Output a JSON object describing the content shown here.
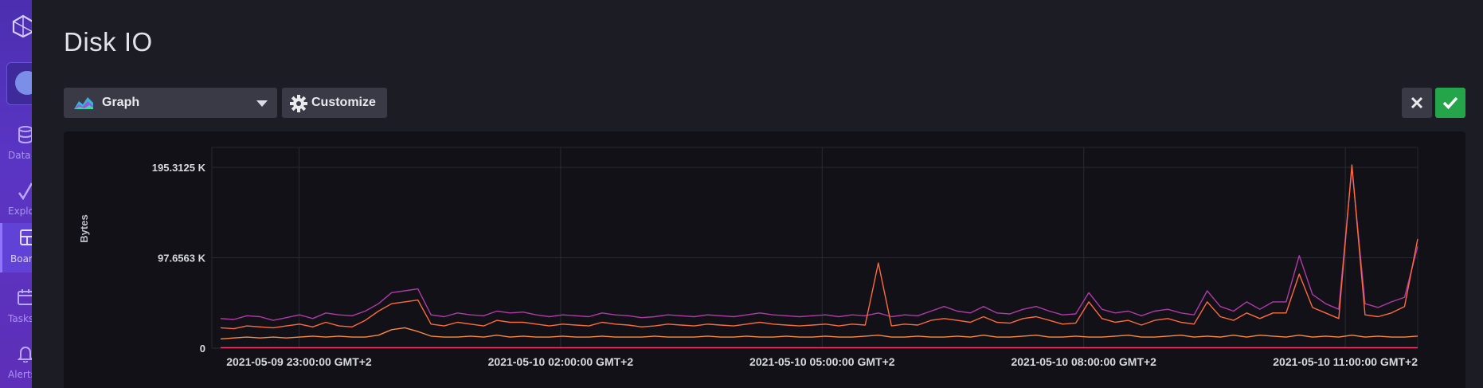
{
  "sidebar": {
    "items": [
      {
        "label": "Data",
        "icon": "database-icon"
      },
      {
        "label": "Explore",
        "icon": "explore-icon"
      },
      {
        "label": "Boards",
        "icon": "boards-icon"
      },
      {
        "label": "Tasks",
        "icon": "calendar-icon"
      },
      {
        "label": "Alerts",
        "icon": "bell-icon"
      }
    ]
  },
  "page": {
    "title": "Disk IO"
  },
  "toolbar": {
    "view_type": "Graph",
    "customize_label": "Customize",
    "accent_ok": "#25a54a"
  },
  "chart_data": {
    "type": "line",
    "title": "",
    "xlabel": "",
    "ylabel": "Bytes",
    "y_ticks": [
      "195.3125 K",
      "97.6563 K",
      "0"
    ],
    "y_tick_values": [
      195312.5,
      97656.3,
      0
    ],
    "ylim": [
      0,
      210000
    ],
    "x_ticks": [
      "2021-05-09 23:00:00 GMT+2",
      "2021-05-10 02:00:00 GMT+2",
      "2021-05-10 05:00:00 GMT+2",
      "2021-05-10 08:00:00 GMT+2",
      "2021-05-10 11:00:00 GMT+2"
    ],
    "x_range": [
      "2021-05-09 22:00:00 GMT+2",
      "2021-05-10 11:50:00 GMT+2"
    ],
    "x_tick_hours": [
      1,
      4,
      7,
      10,
      13
    ],
    "grid": true,
    "series": [
      {
        "color": "#b03aa8",
        "x_hours_start": 0.1,
        "x_hours_step": 0.5,
        "values": [
          32000,
          31000,
          35000,
          34000,
          30000,
          33000,
          36000,
          32000,
          38000,
          36000,
          35000,
          40000,
          48000,
          60000,
          62000,
          64000,
          36000,
          34000,
          38000,
          36000,
          35000,
          40000,
          38000,
          39000,
          36000,
          34000,
          36000,
          35000,
          34000,
          38000,
          36000,
          35000,
          33000,
          34000,
          36000,
          35000,
          34000,
          36000,
          35000,
          34000,
          36000,
          38000,
          36000,
          35000,
          34000,
          35000,
          36000,
          34000,
          36000,
          35000,
          38000,
          34000,
          36000,
          35000,
          40000,
          45000,
          40000,
          38000,
          45000,
          38000,
          37000,
          42000,
          45000,
          40000,
          36000,
          37000,
          60000,
          42000,
          38000,
          40000,
          35000,
          40000,
          42000,
          38000,
          36000,
          62000,
          45000,
          40000,
          50000,
          42000,
          50000,
          50000,
          100000,
          58000,
          48000,
          42000,
          195000,
          48000,
          44000,
          50000,
          55000,
          110000
        ]
      },
      {
        "color": "#ff6a3c",
        "x_hours_start": 0.1,
        "x_hours_step": 0.5,
        "values": [
          22000,
          21000,
          24000,
          23000,
          22000,
          24000,
          26000,
          23000,
          28000,
          24000,
          23000,
          30000,
          40000,
          48000,
          50000,
          52000,
          26000,
          24000,
          28000,
          26000,
          24000,
          30000,
          28000,
          28000,
          26000,
          24000,
          26000,
          25000,
          24000,
          28000,
          26000,
          25000,
          23000,
          24000,
          26000,
          25000,
          24000,
          26000,
          25000,
          24000,
          26000,
          28000,
          26000,
          25000,
          24000,
          25000,
          26000,
          24000,
          26000,
          25000,
          92000,
          24000,
          26000,
          25000,
          30000,
          32000,
          30000,
          28000,
          34000,
          28000,
          27000,
          32000,
          34000,
          30000,
          26000,
          27000,
          50000,
          32000,
          28000,
          30000,
          25000,
          30000,
          32000,
          28000,
          26000,
          50000,
          34000,
          30000,
          38000,
          32000,
          38000,
          38000,
          80000,
          44000,
          38000,
          32000,
          198000,
          36000,
          34000,
          38000,
          45000,
          118000
        ]
      },
      {
        "color": "#ff8a3c",
        "x_hours_start": 0.1,
        "x_hours_step": 0.5,
        "values": [
          10000,
          11000,
          12000,
          11000,
          12000,
          11000,
          12000,
          13000,
          12000,
          13000,
          12000,
          12000,
          14000,
          20000,
          22000,
          18000,
          13000,
          12000,
          12000,
          13000,
          12000,
          14000,
          12000,
          13000,
          12000,
          12000,
          13000,
          12000,
          12000,
          13000,
          12000,
          12000,
          12000,
          13000,
          12000,
          12000,
          12000,
          13000,
          12000,
          12000,
          13000,
          12000,
          12000,
          13000,
          12000,
          12000,
          13000,
          12000,
          12000,
          13000,
          14000,
          12000,
          12000,
          13000,
          12000,
          12000,
          13000,
          12000,
          14000,
          12000,
          12000,
          13000,
          14000,
          12000,
          12000,
          13000,
          12000,
          12000,
          13000,
          14000,
          12000,
          12000,
          13000,
          14000,
          12000,
          13000,
          12000,
          14000,
          12000,
          14000,
          13000,
          12000,
          14000,
          12000,
          13000,
          12000,
          14000,
          12000,
          13000,
          12000,
          12000,
          13000
        ]
      },
      {
        "color": "#ff3a6e",
        "x_hours_start": 0.1,
        "x_hours_step": 0.5,
        "values": [
          500,
          500,
          500,
          500,
          500,
          500,
          500,
          500,
          500,
          500,
          500,
          500,
          500,
          500,
          500,
          500,
          500,
          500,
          500,
          500,
          500,
          500,
          500,
          500,
          500,
          500,
          500,
          500,
          500,
          500,
          500,
          500,
          500,
          500,
          500,
          500,
          500,
          500,
          500,
          500,
          500,
          500,
          500,
          500,
          500,
          500,
          500,
          500,
          500,
          500,
          500,
          500,
          500,
          500,
          500,
          500,
          500,
          500,
          500,
          500,
          500,
          500,
          500,
          500,
          500,
          500,
          500,
          500,
          500,
          500,
          500,
          500,
          500,
          500,
          500,
          500,
          500,
          500,
          500,
          500,
          500,
          500,
          500,
          500,
          500,
          500,
          500,
          500,
          500,
          500,
          500,
          500
        ]
      }
    ]
  }
}
